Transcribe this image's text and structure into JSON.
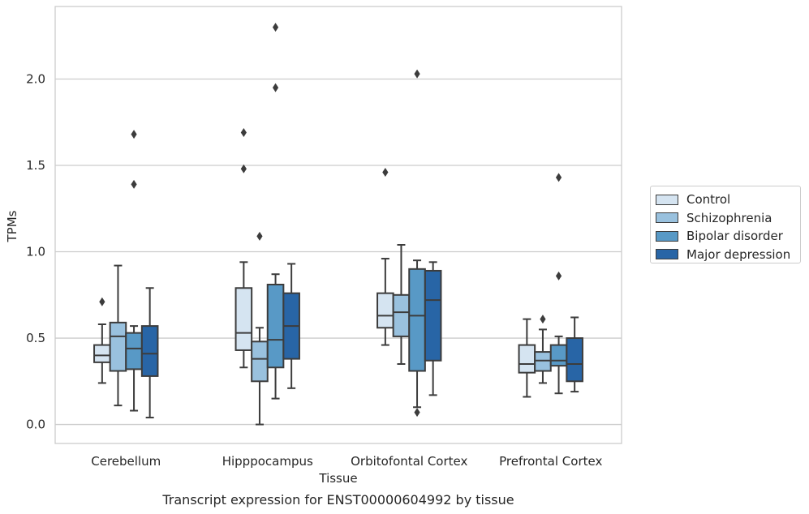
{
  "chart_data": {
    "type": "box",
    "caption": "Transcript expression for ENST00000604992 by tissue",
    "xlabel": "Tissue",
    "ylabel": "TPMs",
    "ylim": [
      -0.11,
      2.42
    ],
    "yticks": [
      "0.0",
      "0.5",
      "1.0",
      "1.5",
      "2.0"
    ],
    "grid": "horizontal",
    "legend_position": "right",
    "categories": [
      "Cerebellum",
      "Hipppocampus",
      "Orbitofontal Cortex",
      "Prefrontal Cortex"
    ],
    "series": [
      {
        "name": "Control",
        "color": "#d5e4f1",
        "boxes": [
          {
            "whislo": 0.24,
            "q1": 0.36,
            "med": 0.4,
            "q3": 0.46,
            "whishi": 0.58,
            "fliers": [
              0.71
            ]
          },
          {
            "whislo": 0.33,
            "q1": 0.43,
            "med": 0.53,
            "q3": 0.79,
            "whishi": 0.94,
            "fliers": [
              1.48,
              1.69
            ]
          },
          {
            "whislo": 0.46,
            "q1": 0.56,
            "med": 0.63,
            "q3": 0.76,
            "whishi": 0.96,
            "fliers": [
              1.46
            ]
          },
          {
            "whislo": 0.16,
            "q1": 0.3,
            "med": 0.35,
            "q3": 0.46,
            "whishi": 0.61,
            "fliers": []
          }
        ]
      },
      {
        "name": "Schizophrenia",
        "color": "#99c1de",
        "boxes": [
          {
            "whislo": 0.11,
            "q1": 0.31,
            "med": 0.51,
            "q3": 0.59,
            "whishi": 0.92,
            "fliers": []
          },
          {
            "whislo": 0.0,
            "q1": 0.25,
            "med": 0.38,
            "q3": 0.48,
            "whishi": 0.56,
            "fliers": [
              1.09
            ]
          },
          {
            "whislo": 0.35,
            "q1": 0.51,
            "med": 0.65,
            "q3": 0.75,
            "whishi": 1.04,
            "fliers": []
          },
          {
            "whislo": 0.24,
            "q1": 0.31,
            "med": 0.37,
            "q3": 0.42,
            "whishi": 0.55,
            "fliers": [
              0.61
            ]
          }
        ]
      },
      {
        "name": "Bipolar disorder",
        "color": "#5899c6",
        "boxes": [
          {
            "whislo": 0.08,
            "q1": 0.32,
            "med": 0.44,
            "q3": 0.53,
            "whishi": 0.57,
            "fliers": [
              1.39,
              1.68
            ]
          },
          {
            "whislo": 0.15,
            "q1": 0.33,
            "med": 0.49,
            "q3": 0.81,
            "whishi": 0.87,
            "fliers": [
              1.95,
              2.3
            ]
          },
          {
            "whislo": 0.1,
            "q1": 0.31,
            "med": 0.63,
            "q3": 0.9,
            "whishi": 0.95,
            "fliers": [
              0.07,
              2.03
            ]
          },
          {
            "whislo": 0.18,
            "q1": 0.34,
            "med": 0.37,
            "q3": 0.46,
            "whishi": 0.51,
            "fliers": [
              0.86,
              1.43
            ]
          }
        ]
      },
      {
        "name": "Major depression",
        "color": "#2865a6",
        "boxes": [
          {
            "whislo": 0.04,
            "q1": 0.28,
            "med": 0.41,
            "q3": 0.57,
            "whishi": 0.79,
            "fliers": []
          },
          {
            "whislo": 0.21,
            "q1": 0.38,
            "med": 0.57,
            "q3": 0.76,
            "whishi": 0.93,
            "fliers": []
          },
          {
            "whislo": 0.17,
            "q1": 0.37,
            "med": 0.72,
            "q3": 0.89,
            "whishi": 0.94,
            "fliers": []
          },
          {
            "whislo": 0.19,
            "q1": 0.25,
            "med": 0.35,
            "q3": 0.5,
            "whishi": 0.62,
            "fliers": []
          }
        ]
      }
    ]
  }
}
